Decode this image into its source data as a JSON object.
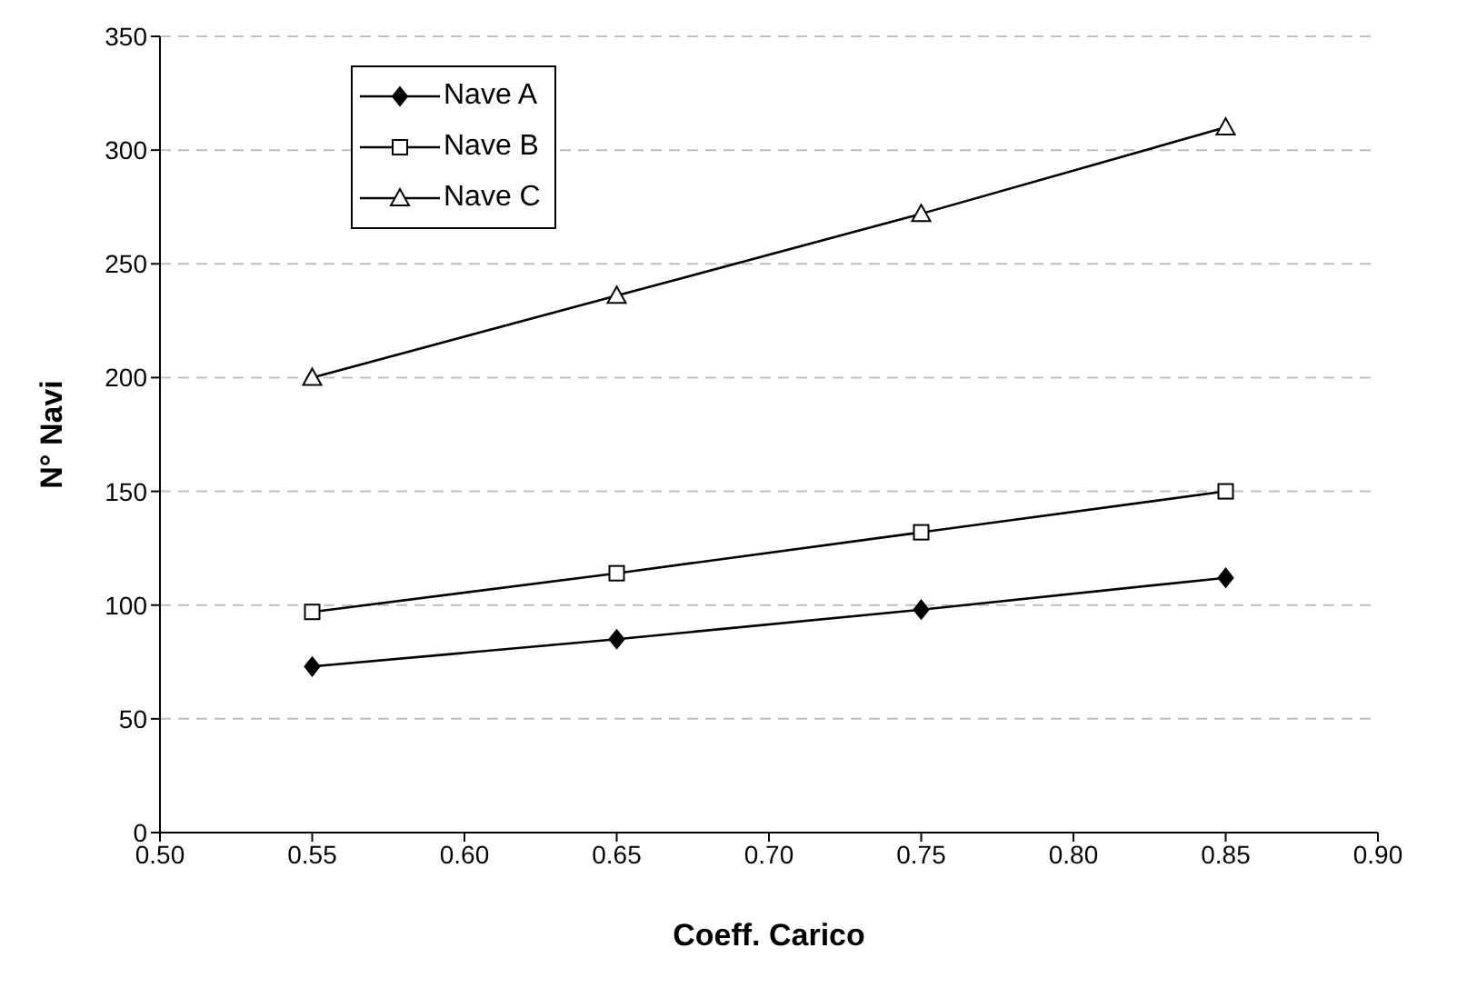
{
  "chart_data": {
    "type": "line",
    "xlabel": "Coeff. Carico",
    "ylabel": "N° Navi",
    "x": [
      0.55,
      0.65,
      0.75,
      0.85
    ],
    "series": [
      {
        "name": "Nave A",
        "color": "#000000",
        "marker": "diamond",
        "values": [
          73,
          85,
          98,
          112
        ]
      },
      {
        "name": "Nave B",
        "color": "#000000",
        "marker": "square",
        "values": [
          97,
          114,
          132,
          150
        ]
      },
      {
        "name": "Nave C",
        "color": "#000000",
        "marker": "triangle",
        "values": [
          200,
          236,
          272,
          310
        ]
      }
    ],
    "xlim": [
      0.5,
      0.9
    ],
    "xticks": [
      {
        "value": 0.5,
        "label": "0.50"
      },
      {
        "value": 0.55,
        "label": "0.55"
      },
      {
        "value": 0.6,
        "label": "0.60"
      },
      {
        "value": 0.65,
        "label": "0.65"
      },
      {
        "value": 0.7,
        "label": "0.70"
      },
      {
        "value": 0.75,
        "label": "0.75"
      },
      {
        "value": 0.8,
        "label": "0.80"
      },
      {
        "value": 0.85,
        "label": "0.85"
      },
      {
        "value": 0.9,
        "label": "0.90"
      }
    ],
    "ylim": [
      0,
      350
    ],
    "yticks": [
      0,
      50,
      100,
      150,
      200,
      250,
      300,
      350
    ],
    "grid": "y",
    "legend": "top left",
    "line_style": "solid"
  }
}
